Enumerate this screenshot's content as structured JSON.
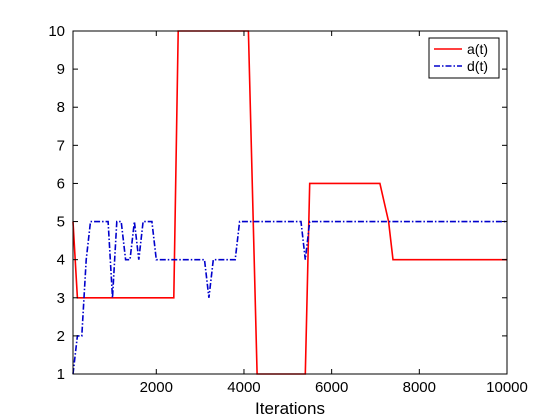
{
  "chart_data": {
    "type": "line",
    "title": "",
    "xlabel": "Iterations",
    "ylabel": "",
    "xlim": [
      100,
      10000
    ],
    "ylim": [
      1,
      10
    ],
    "xticks": [
      2000,
      4000,
      6000,
      8000,
      10000
    ],
    "yticks": [
      1,
      2,
      3,
      4,
      5,
      6,
      7,
      8,
      9,
      10
    ],
    "grid": false,
    "legend_position": "top-right",
    "series": [
      {
        "name": "a(t)",
        "color": "#ff0000",
        "line_style": "solid",
        "x": [
          100,
          200,
          2400,
          2500,
          4100,
          4300,
          5400,
          5500,
          7100,
          7300,
          7400,
          10000
        ],
        "y": [
          5,
          3,
          3,
          10,
          10,
          1,
          1,
          6,
          6,
          5,
          4,
          4
        ]
      },
      {
        "name": "d(t)",
        "color": "#0000cc",
        "line_style": "dashdot",
        "x": [
          100,
          200,
          300,
          400,
          500,
          800,
          900,
          1000,
          1100,
          1200,
          1300,
          1400,
          1500,
          1600,
          1700,
          1800,
          1900,
          2000,
          2100,
          3000,
          3100,
          3200,
          3300,
          3400,
          3700,
          3800,
          3900,
          5200,
          5300,
          5400,
          5500,
          10000
        ],
        "y": [
          1,
          2,
          2,
          4,
          5,
          5,
          5,
          3,
          5,
          5,
          4,
          4,
          5,
          4,
          5,
          5,
          5,
          4,
          4,
          4,
          4,
          3,
          4,
          4,
          4,
          4,
          5,
          5,
          5,
          4,
          5,
          5
        ]
      }
    ]
  }
}
